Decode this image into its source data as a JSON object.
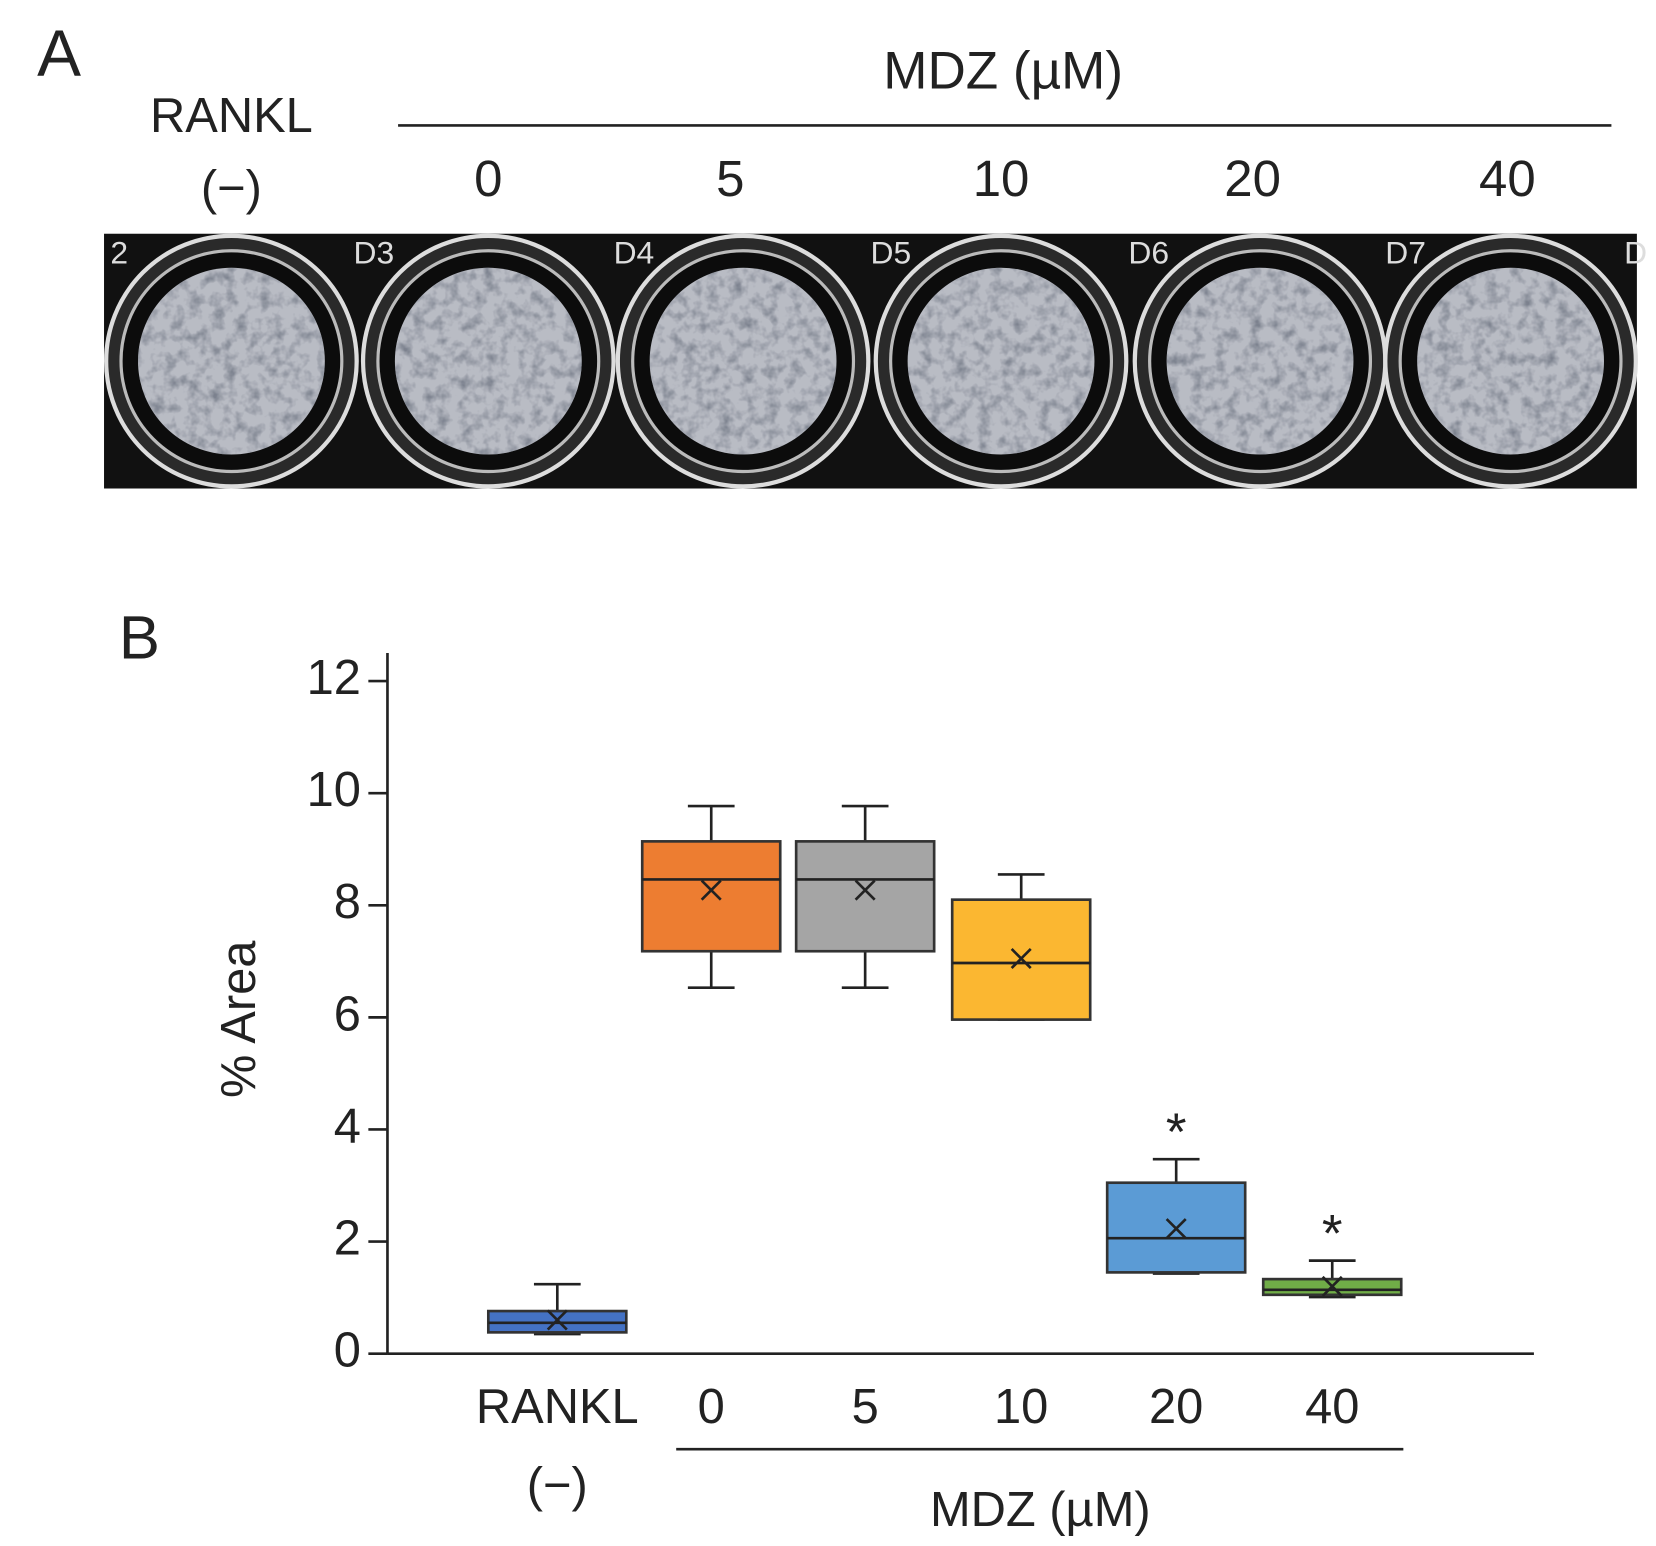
{
  "panel_a": {
    "panel_label": "A",
    "control_label": "RANKL (−)",
    "group_label": "MDZ (µM)",
    "doses": [
      "0",
      "5",
      "10",
      "20",
      "40"
    ],
    "well_labels": [
      "2",
      "D3",
      "D4",
      "D5",
      "D6",
      "D7",
      "D"
    ]
  },
  "chart_data": {
    "type": "box",
    "panel_label": "B",
    "ylabel": "% Area",
    "categories": [
      "RANKL (−)",
      "0",
      "5",
      "10",
      "20",
      "40"
    ],
    "group_label": "MDZ (µM)",
    "colors": [
      "#4472c4",
      "#ed7d31",
      "#a5a5a5",
      "#fbb731",
      "#5b9bd5",
      "#70ad47"
    ],
    "min": [
      0.35,
      6.53,
      6.53,
      5.96,
      1.43,
      1.01
    ],
    "q1": [
      0.38,
      7.18,
      7.18,
      5.96,
      1.45,
      1.05
    ],
    "median": [
      0.55,
      8.46,
      8.46,
      6.97,
      2.06,
      1.14
    ],
    "q3": [
      0.76,
      9.14,
      9.14,
      8.1,
      3.05,
      1.33
    ],
    "max": [
      1.24,
      9.77,
      9.77,
      8.55,
      3.47,
      1.66
    ],
    "mean": [
      0.6,
      8.27,
      8.27,
      7.05,
      2.23,
      1.2
    ],
    "ylim": [
      0,
      12.5
    ],
    "yticks": [
      0,
      2,
      4,
      6,
      8,
      10,
      12
    ],
    "annotations": [
      {
        "text": "*",
        "category": "20"
      },
      {
        "text": "*",
        "category": "40"
      }
    ]
  }
}
